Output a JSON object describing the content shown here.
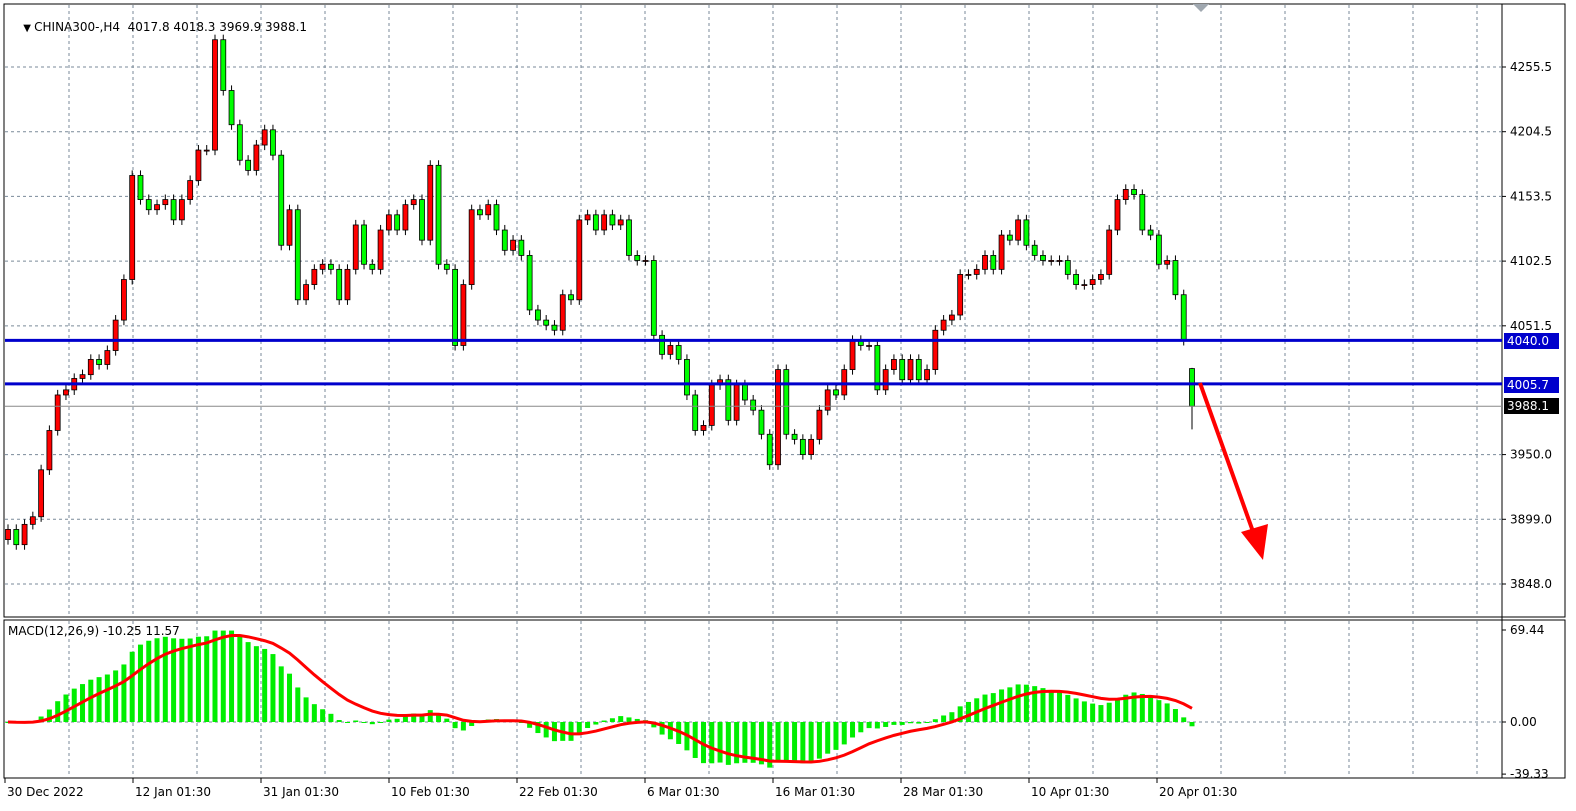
{
  "header": {
    "symbol": "CHINA300-,H4",
    "ohlc": "4017.8 4018.3 3969.9 3988.1"
  },
  "macd_header": {
    "label": "MACD(12,26,9)",
    "values": "-10.25 11.57"
  },
  "colors": {
    "up": "#ff0000",
    "down": "#00ff00",
    "level_line": "#0000cc",
    "signal": "#ff0000",
    "histogram": "#00ee00",
    "arrow": "#ff0000",
    "grid": "#7a8a99"
  },
  "level_tags": [
    {
      "value": "4040.0",
      "color": "#0000cc"
    },
    {
      "value": "4005.7",
      "color": "#0000cc"
    },
    {
      "value": "3988.1",
      "color": "#000000"
    }
  ],
  "chart_data": [
    {
      "type": "candlestick",
      "title": "CHINA300-,H4",
      "y_ticks": [
        "4255.5",
        "4204.5",
        "4153.5",
        "4102.5",
        "4051.5",
        "3950.0",
        "3899.0",
        "3848.0"
      ],
      "x_ticks": [
        "30 Dec 2022",
        "12 Jan 01:30",
        "31 Jan 01:30",
        "10 Feb 01:30",
        "22 Feb 01:30",
        "6 Mar 01:30",
        "16 Mar 01:30",
        "28 Mar 01:30",
        "10 Apr 01:30",
        "20 Apr 01:30"
      ],
      "ylim": [
        3822,
        4305
      ],
      "grid": true,
      "horizontal_levels": [
        4040.0,
        4005.7
      ],
      "last_price": 3988.1,
      "last_candle": {
        "open": 4017.8,
        "high": 4018.3,
        "low": 3969.9,
        "close": 3988.1
      },
      "closes": [
        3891,
        3879,
        3895,
        3901,
        3938,
        3969,
        3997,
        4001,
        4010,
        4013,
        4025,
        4021,
        4032,
        4056,
        4088,
        4170,
        4151,
        4143,
        4147,
        4151,
        4135,
        4151,
        4166,
        4190,
        4190,
        4277,
        4237,
        4210,
        4182,
        4174,
        4194,
        4206,
        4186,
        4115,
        4143,
        4072,
        4084,
        4096,
        4100,
        4096,
        4072,
        4096,
        4131,
        4100,
        4096,
        4127,
        4139,
        4127,
        4147,
        4151,
        4119,
        4178,
        4100,
        4096,
        4036,
        4084,
        4143,
        4139,
        4147,
        4127,
        4111,
        4119,
        4107,
        4064,
        4056,
        4052,
        4048,
        4076,
        4072,
        4135,
        4139,
        4127,
        4139,
        4131,
        4135,
        4107,
        4103,
        4103,
        4044,
        4029,
        4036,
        4025,
        3997,
        3969,
        3973,
        4005,
        4009,
        3977,
        4005,
        3993,
        3985,
        3966,
        3942,
        4017,
        3966,
        3962,
        3950,
        3962,
        3985,
        4001,
        3997,
        4017,
        4040,
        4036,
        4036,
        4001,
        4017,
        4025,
        4009,
        4025,
        4009,
        4017,
        4048,
        4056,
        4060,
        4092,
        4092,
        4096,
        4107,
        4096,
        4123,
        4119,
        4135,
        4115,
        4107,
        4103,
        4103,
        4103,
        4092,
        4084,
        4084,
        4088,
        4092,
        4127,
        4151,
        4159,
        4155,
        4127,
        4123,
        4100,
        4103,
        4076,
        4040,
        4018
      ],
      "annotation": "red arrow pointing down"
    },
    {
      "type": "bar+line",
      "title": "MACD(12,26,9)",
      "params": [
        12,
        26,
        9
      ],
      "current": {
        "macd": -10.25,
        "signal": 11.57
      },
      "y_ticks": [
        "69.44",
        "0.00",
        "-39.33"
      ],
      "ylim": [
        -39.33,
        69.44
      ]
    }
  ]
}
